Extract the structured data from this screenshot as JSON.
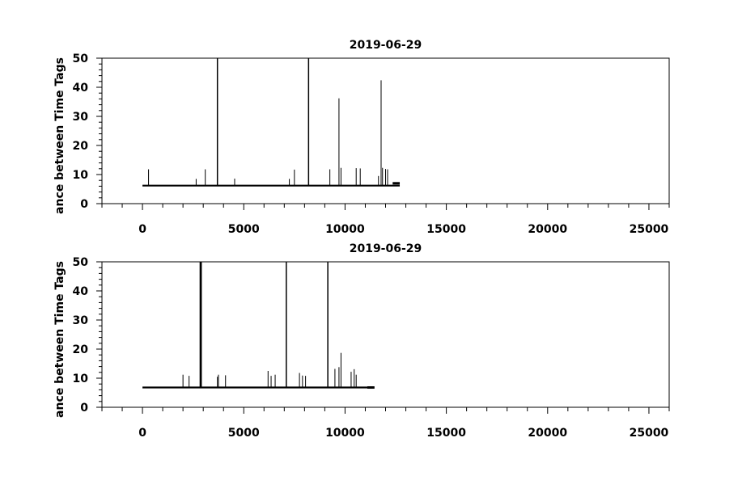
{
  "chart_data": [
    {
      "type": "line",
      "title": "2019-06-29",
      "ylabel": "ance between Time Tags",
      "xlabel": "",
      "xlim": [
        -2000,
        26000
      ],
      "ylim": [
        0,
        50
      ],
      "x_ticks": [
        0,
        5000,
        10000,
        15000,
        20000,
        25000
      ],
      "x_tick_labels": [
        "0",
        "5000",
        "10000",
        "15000",
        "20000",
        "25000"
      ],
      "y_ticks": [
        0,
        10,
        20,
        30,
        40,
        50
      ],
      "y_tick_labels": [
        "0",
        "10",
        "20",
        "30",
        "40",
        "50"
      ],
      "grid": false,
      "baseline": 6.2,
      "x_range": [
        0,
        12700
      ],
      "spikes": [
        {
          "x": 300,
          "y": 11.8
        },
        {
          "x": 2650,
          "y": 8.5
        },
        {
          "x": 3100,
          "y": 11.8
        },
        {
          "x": 3700,
          "y": 50
        },
        {
          "x": 4550,
          "y": 8.6
        },
        {
          "x": 7250,
          "y": 8.5
        },
        {
          "x": 7500,
          "y": 11.7
        },
        {
          "x": 8200,
          "y": 50
        },
        {
          "x": 9250,
          "y": 11.8
        },
        {
          "x": 9700,
          "y": 36.2
        },
        {
          "x": 9800,
          "y": 12.3
        },
        {
          "x": 10550,
          "y": 12.2
        },
        {
          "x": 10750,
          "y": 12.1
        },
        {
          "x": 11650,
          "y": 9.5
        },
        {
          "x": 11780,
          "y": 42.4
        },
        {
          "x": 11850,
          "y": 12.3
        },
        {
          "x": 12000,
          "y": 11.9
        },
        {
          "x": 12100,
          "y": 11.8
        }
      ],
      "tail_level": 7.0
    },
    {
      "type": "line",
      "title": "2019-06-29",
      "ylabel": "ance between Time Tags",
      "xlabel": "",
      "xlim": [
        -2000,
        26000
      ],
      "ylim": [
        0,
        50
      ],
      "x_ticks": [
        0,
        5000,
        10000,
        15000,
        20000,
        25000
      ],
      "x_tick_labels": [
        "0",
        "5000",
        "10000",
        "15000",
        "20000",
        "25000"
      ],
      "y_ticks": [
        0,
        10,
        20,
        30,
        40,
        50
      ],
      "y_tick_labels": [
        "0",
        "10",
        "20",
        "30",
        "40",
        "50"
      ],
      "grid": false,
      "baseline": 6.8,
      "x_range": [
        0,
        11450
      ],
      "spikes": [
        {
          "x": 2000,
          "y": 11.2
        },
        {
          "x": 2300,
          "y": 10.8
        },
        {
          "x": 2850,
          "y": 50
        },
        {
          "x": 2900,
          "y": 50
        },
        {
          "x": 3700,
          "y": 10.5
        },
        {
          "x": 3750,
          "y": 11.2
        },
        {
          "x": 4100,
          "y": 11.0
        },
        {
          "x": 6200,
          "y": 12.5
        },
        {
          "x": 6350,
          "y": 10.8
        },
        {
          "x": 6550,
          "y": 11.2
        },
        {
          "x": 7100,
          "y": 50
        },
        {
          "x": 7750,
          "y": 11.8
        },
        {
          "x": 7900,
          "y": 10.9
        },
        {
          "x": 8050,
          "y": 10.8
        },
        {
          "x": 9150,
          "y": 50
        },
        {
          "x": 9500,
          "y": 13.2
        },
        {
          "x": 9700,
          "y": 13.8
        },
        {
          "x": 9800,
          "y": 18.7
        },
        {
          "x": 10300,
          "y": 12.2
        },
        {
          "x": 10450,
          "y": 13.1
        },
        {
          "x": 10550,
          "y": 11.2
        }
      ],
      "tail_level": 6.8
    }
  ]
}
